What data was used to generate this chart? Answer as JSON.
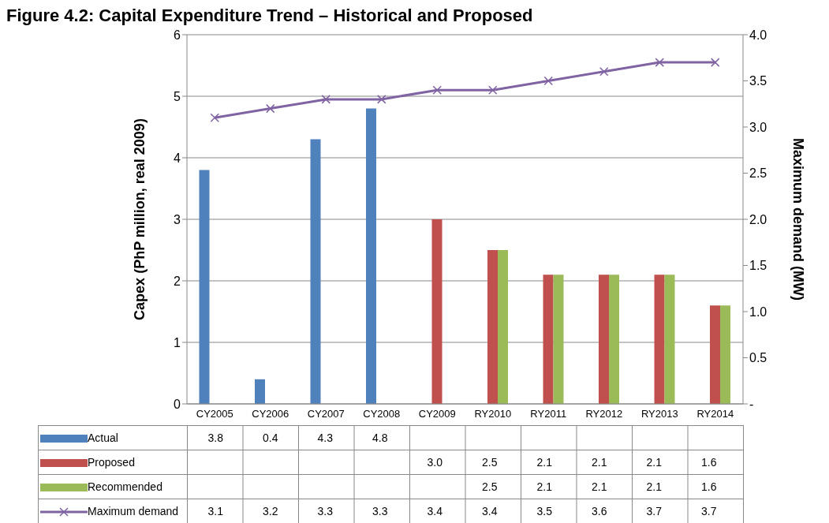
{
  "chart_data": {
    "type": "bar",
    "title": "Figure 4.2: Capital Expenditure Trend – Historical and Proposed",
    "ylabel": "Capex (PhP million, real 2009)",
    "y2label": "Maximum demand (MW)",
    "categories": [
      "CY2005",
      "CY2006",
      "CY2007",
      "CY2008",
      "CY2009",
      "RY2010",
      "RY2011",
      "RY2012",
      "RY2013",
      "RY2014"
    ],
    "series": [
      {
        "name": "Actual",
        "color": "#4f81bd",
        "values": [
          3.8,
          0.4,
          4.3,
          4.8,
          null,
          null,
          null,
          null,
          null,
          null
        ],
        "value_labels": [
          "3.8",
          "0.4",
          "4.3",
          "4.8",
          null,
          null,
          null,
          null,
          null,
          null
        ]
      },
      {
        "name": "Proposed",
        "color": "#c0504d",
        "values": [
          null,
          null,
          null,
          null,
          3.0,
          2.5,
          2.1,
          2.1,
          2.1,
          1.6
        ],
        "value_labels": [
          null,
          null,
          null,
          null,
          "3.0",
          "2.5",
          "2.1",
          "2.1",
          "2.1",
          "1.6"
        ]
      },
      {
        "name": "Recommended",
        "color": "#9bbb59",
        "values": [
          null,
          null,
          null,
          null,
          null,
          2.5,
          2.1,
          2.1,
          2.1,
          1.6
        ],
        "value_labels": [
          null,
          null,
          null,
          null,
          null,
          "2.5",
          "2.1",
          "2.1",
          "2.1",
          "1.6"
        ]
      },
      {
        "name": "Maximum demand",
        "type": "line",
        "axis": "y2",
        "color": "#7f63a2",
        "marker": "cross",
        "values": [
          3.1,
          3.2,
          3.3,
          3.3,
          3.4,
          3.4,
          3.5,
          3.6,
          3.7,
          3.7
        ],
        "value_labels": [
          "3.1",
          "3.2",
          "3.3",
          "3.3",
          "3.4",
          "3.4",
          "3.5",
          "3.6",
          "3.7",
          "3.7"
        ]
      }
    ],
    "ylim": [
      0,
      6
    ],
    "yticks": [
      0,
      1,
      2,
      3,
      4,
      5,
      6
    ],
    "y2lim": [
      0,
      4
    ],
    "y2ticks": [
      {
        "value": 0,
        "label": "-"
      },
      0.5,
      {
        "value": 1,
        "label": "1.0"
      },
      1.5,
      {
        "value": 2,
        "label": "2.0"
      },
      2.5,
      {
        "value": 3,
        "label": "3.0"
      },
      3.5,
      {
        "value": 4,
        "label": "4.0"
      }
    ],
    "grid": "y",
    "legend": "bottom"
  }
}
